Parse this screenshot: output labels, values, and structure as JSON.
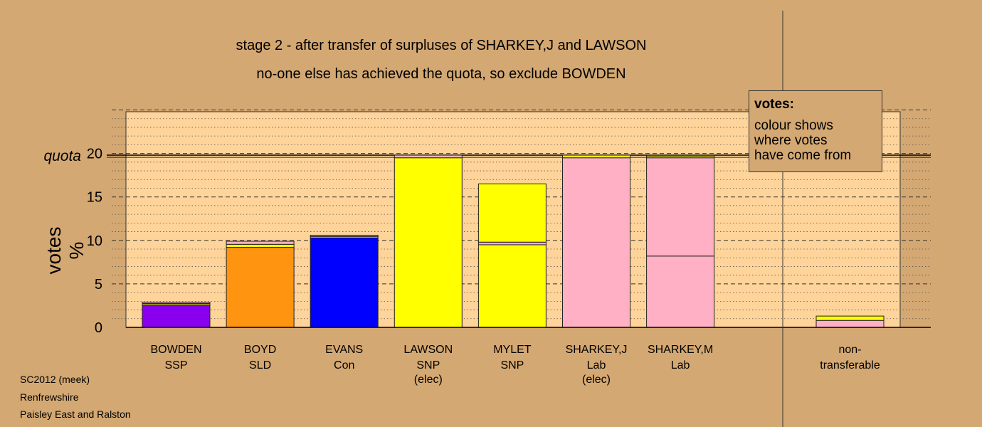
{
  "title_line1": "stage 2 - after transfer of surpluses of SHARKEY,J and LAWSON",
  "title_line2": "no-one else has achieved the quota, so exclude BOWDEN",
  "footer": {
    "line1": "SC2012 (meek)",
    "line2": "Renfrewshire",
    "line3": "Paisley East and Ralston"
  },
  "legend": {
    "title": "votes:",
    "lines": [
      "colour shows",
      "where votes",
      "have come from"
    ]
  },
  "colors": {
    "background": "#d4a872",
    "plot_background": "#ffd49a",
    "SSP": "#8800ee",
    "SLD": "#ff9410",
    "Con": "#0000ff",
    "SNP": "#ffff00",
    "Lab": "#ffb0c4"
  },
  "chart_data": {
    "type": "bar",
    "stacked": true,
    "ylabel": "votes %",
    "ylim": [
      0,
      25
    ],
    "yticks": [
      0,
      5,
      10,
      15,
      20
    ],
    "quota": 19.8,
    "quota_label": "quota",
    "grid": true,
    "categories": [
      {
        "name": "BOWDEN",
        "party": "SSP",
        "note": "",
        "segments": [
          {
            "source": "SSP",
            "value": 2.6
          },
          {
            "source": "SNP",
            "value": 0.15
          },
          {
            "source": "Lab",
            "value": 0.15
          }
        ]
      },
      {
        "name": "BOYD",
        "party": "SLD",
        "note": "",
        "segments": [
          {
            "source": "SLD",
            "value": 9.2
          },
          {
            "source": "SNP",
            "value": 0.35
          },
          {
            "source": "Lab",
            "value": 0.35
          }
        ]
      },
      {
        "name": "EVANS",
        "party": "Con",
        "note": "",
        "segments": [
          {
            "source": "Con",
            "value": 10.3
          },
          {
            "source": "SNP",
            "value": 0.15
          },
          {
            "source": "Lab",
            "value": 0.15
          }
        ]
      },
      {
        "name": "LAWSON",
        "party": "SNP",
        "note": "(elec)",
        "segments": [
          {
            "source": "SNP",
            "value": 19.5
          },
          {
            "source": "Lab",
            "value": 0.3
          }
        ]
      },
      {
        "name": "MYLET",
        "party": "SNP",
        "note": "",
        "segments": [
          {
            "source": "SNP",
            "value": 9.5
          },
          {
            "source": "Lab",
            "value": 0.3
          },
          {
            "source": "SNP",
            "value": 6.7
          }
        ]
      },
      {
        "name": "SHARKEY,J",
        "party": "Lab",
        "note": "(elec)",
        "segments": [
          {
            "source": "Lab",
            "value": 19.5
          },
          {
            "source": "SNP",
            "value": 0.3
          }
        ]
      },
      {
        "name": "SHARKEY,M",
        "party": "Lab",
        "note": "",
        "segments": [
          {
            "source": "Lab",
            "value": 8.2
          },
          {
            "source": "Lab",
            "value": 11.3
          },
          {
            "source": "SNP",
            "value": 0.2
          },
          {
            "source": "Lab",
            "value": 0.1
          }
        ]
      }
    ],
    "nontransferable": {
      "label1": "non-",
      "label2": "transferable",
      "segments": [
        {
          "source": "Lab",
          "value": 0.8
        },
        {
          "source": "SNP",
          "value": 0.5
        }
      ]
    }
  }
}
